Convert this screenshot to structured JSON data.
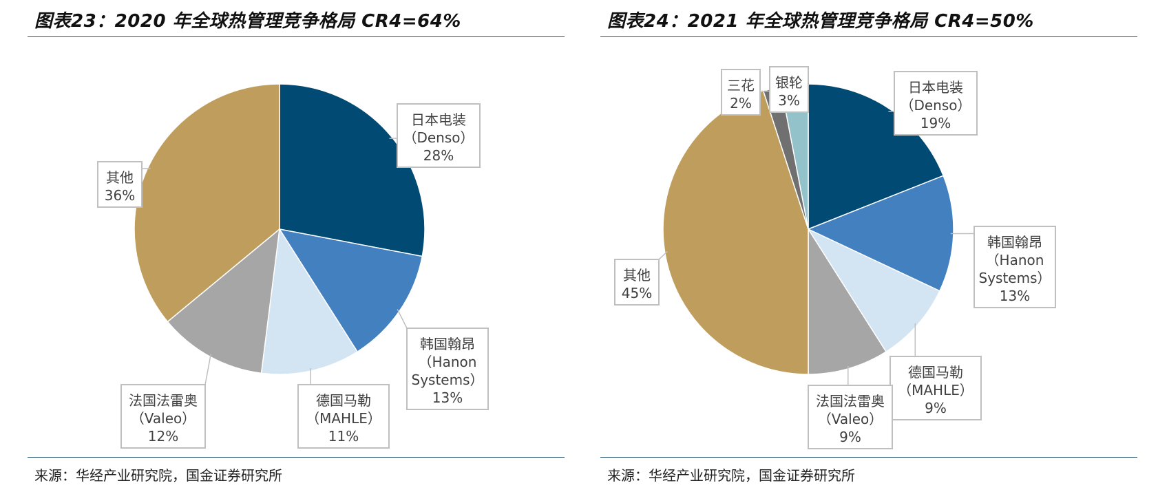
{
  "panels": [
    {
      "title": "图表23：2020 年全球热管理竞争格局 CR4=64%",
      "source": "来源：华经产业研究院，国金证券研究所"
    },
    {
      "title": "图表24：2021 年全球热管理竞争格局 CR4=50%",
      "source": "来源：华经产业研究院，国金证券研究所"
    }
  ],
  "chart_data": [
    {
      "type": "pie",
      "title": "2020 年全球热管理竞争格局 CR4=64%",
      "slices": [
        {
          "label": [
            "日本电装",
            "（Denso）"
          ],
          "value": 28,
          "display": "28%",
          "color": "#004a73"
        },
        {
          "label": [
            "韩国翰昂",
            "（Hanon",
            "Systems）"
          ],
          "value": 13,
          "display": "13%",
          "color": "#4280bf"
        },
        {
          "label": [
            "德国马勒",
            "（MAHLE）"
          ],
          "value": 11,
          "display": "11%",
          "color": "#d3e4f3"
        },
        {
          "label": [
            "法国法雷奥",
            "（Valeo）"
          ],
          "value": 12,
          "display": "12%",
          "color": "#a6a6a6"
        },
        {
          "label": [
            "其他"
          ],
          "value": 36,
          "display": "36%",
          "color": "#bf9e5d"
        }
      ]
    },
    {
      "type": "pie",
      "title": "2021 年全球热管理竞争格局 CR4=50%",
      "slices": [
        {
          "label": [
            "日本电装",
            "（Denso）"
          ],
          "value": 19,
          "display": "19%",
          "color": "#004a73"
        },
        {
          "label": [
            "韩国翰昂",
            "（Hanon",
            "Systems）"
          ],
          "value": 13,
          "display": "13%",
          "color": "#4280bf"
        },
        {
          "label": [
            "德国马勒",
            "（MAHLE）"
          ],
          "value": 9,
          "display": "9%",
          "color": "#d3e4f3"
        },
        {
          "label": [
            "法国法雷奥",
            "（Valeo）"
          ],
          "value": 9,
          "display": "9%",
          "color": "#a6a6a6"
        },
        {
          "label": [
            "其他"
          ],
          "value": 45,
          "display": "45%",
          "color": "#bf9e5d"
        },
        {
          "label": [
            "三花"
          ],
          "value": 2,
          "display": "2%",
          "color": "#707070"
        },
        {
          "label": [
            "银轮"
          ],
          "value": 3,
          "display": "3%",
          "color": "#93c2cb"
        }
      ]
    }
  ]
}
